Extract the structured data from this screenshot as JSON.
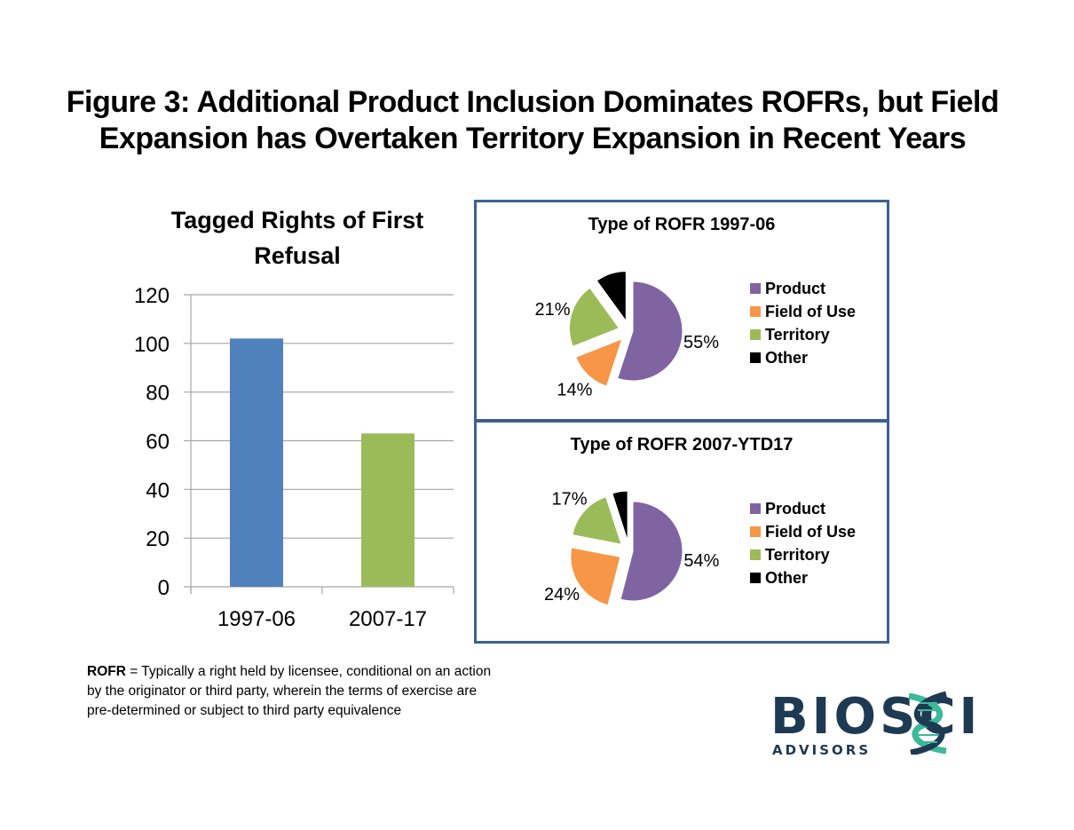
{
  "figure_title": "Figure 3:  Additional Product Inclusion Dominates ROFRs, but Field Expansion has Overtaken Territory Expansion in Recent Years",
  "chart_data": [
    {
      "type": "bar",
      "title": "Tagged Rights of First Refusal",
      "categories": [
        "1997-06",
        "2007-17"
      ],
      "values": [
        102,
        63
      ],
      "colors": [
        "#4f81bd",
        "#9bbb59"
      ],
      "xlabel": "",
      "ylabel": "",
      "ylim": [
        0,
        120
      ],
      "yticks": [
        0,
        20,
        40,
        60,
        80,
        100,
        120
      ],
      "grid": true,
      "legend": "none"
    },
    {
      "type": "pie",
      "title": "Type of ROFR 1997-06",
      "labels": [
        "Product",
        "Field of Use",
        "Territory",
        "Other"
      ],
      "values": [
        55,
        14,
        21,
        10
      ],
      "data_labels": [
        "55%",
        "14%",
        "21%",
        ""
      ],
      "colors": [
        "#8064a2",
        "#f79646",
        "#9bbb59",
        "#000000"
      ],
      "exploded": true,
      "legend": "right"
    },
    {
      "type": "pie",
      "title": "Type of ROFR 2007-YTD17",
      "labels": [
        "Product",
        "Field of Use",
        "Territory",
        "Other"
      ],
      "values": [
        54,
        24,
        17,
        5
      ],
      "data_labels": [
        "54%",
        "24%",
        "17%",
        ""
      ],
      "colors": [
        "#8064a2",
        "#f79646",
        "#9bbb59",
        "#000000"
      ],
      "exploded": true,
      "legend": "right"
    }
  ],
  "note": {
    "term": "ROFR",
    "definition": " = Typically a right held by licensee, conditional on an action by the originator or third party, wherein the terms of exercise are pre-determined or subject to third party equivalence"
  },
  "logo": {
    "main": "BIOSCI",
    "sub": "ADVISORS",
    "colors": {
      "text": "#1e3a52",
      "helix": "#3cb89a"
    }
  }
}
